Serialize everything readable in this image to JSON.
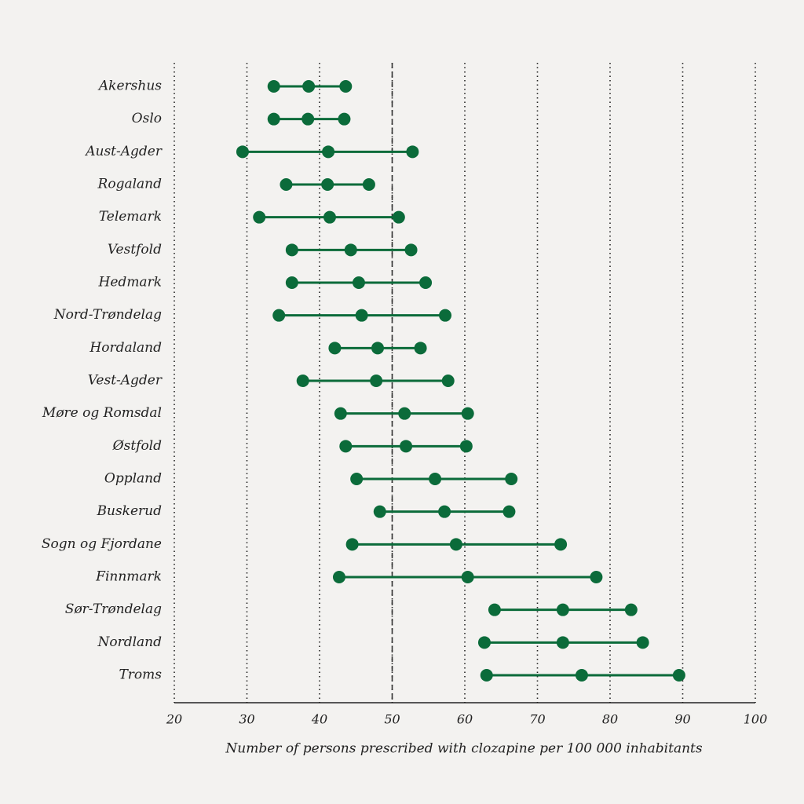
{
  "chart_data": {
    "type": "dumbbell",
    "x_label": "Number of persons prescribed with clozapine per 100 000 inhabitants",
    "categories": [
      "Akershus",
      "Oslo",
      "Aust-Agder",
      "Rogaland",
      "Telemark",
      "Vestfold",
      "Hedmark",
      "Nord-Trøndelag",
      "Hordaland",
      "Vest-Agder",
      "Møre og Romsdal",
      "Østfold",
      "Oppland",
      "Buskerud",
      "Sogn og Fjordane",
      "Finnmark",
      "Sør-Trøndelag",
      "Nordland",
      "Troms"
    ],
    "series": [
      {
        "color": "#0b6b3a",
        "values": [
          33.7,
          33.7,
          29.4,
          35.4,
          31.7,
          36.2,
          36.2,
          34.4,
          42.1,
          37.7,
          42.9,
          43.6,
          45.1,
          48.3,
          44.5,
          42.7,
          64.1,
          62.7,
          63.0
        ]
      },
      {
        "color": "#0b6b3a",
        "values": [
          38.5,
          38.4,
          41.2,
          41.1,
          41.4,
          44.3,
          45.4,
          45.8,
          48.0,
          47.8,
          51.7,
          51.9,
          55.9,
          57.2,
          58.8,
          60.4,
          73.5,
          73.5,
          76.1
        ]
      },
      {
        "color": "#0b6b3a",
        "values": [
          43.6,
          43.4,
          52.8,
          46.8,
          50.9,
          52.6,
          54.6,
          57.3,
          53.9,
          57.7,
          60.4,
          60.2,
          66.4,
          66.1,
          73.2,
          78.1,
          82.9,
          84.5,
          89.5
        ]
      }
    ],
    "xlim": [
      20,
      100
    ],
    "xticks": [
      20,
      30,
      40,
      50,
      60,
      70,
      80,
      90,
      100
    ],
    "grid": true,
    "reference_line": 50
  }
}
